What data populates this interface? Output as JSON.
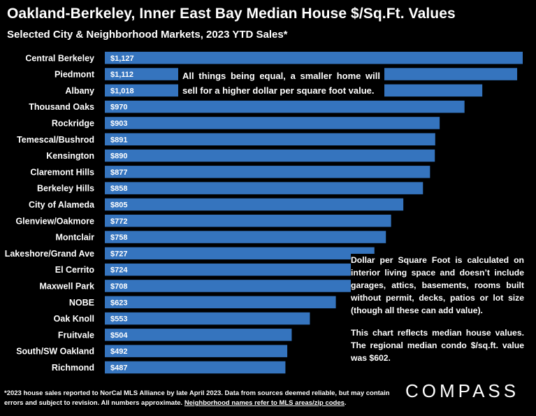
{
  "title": "Oakland-Berkeley, Inner East Bay Median House $/Sq.Ft. Values",
  "subtitle": "Selected City & Neighborhood Markets, 2023 YTD Sales*",
  "callout": "All things being equal, a smaller home will sell for a higher dollar per square foot value.",
  "note_paragraph_1": "Dollar per Square Foot is calculated on interior living space and doesn’t include garages, attics, basements, rooms built without permit, decks, patios or lot size (though all these can add value).",
  "note_paragraph_2": "This chart reflects median house values. The regional median condo $/sq.ft. value was $602.",
  "footer": {
    "text": "*2023 house sales reported to NorCal MLS Alliance by late April 2023. Data from sources deemed reliable, but may contain errors and subject to revision. All numbers approximate.",
    "link": "Neighborhood names refer to MLS areas/zip codes"
  },
  "logo": "COMPASS",
  "colors": {
    "bar": "#3574be",
    "background": "#000000",
    "text": "#ffffff"
  },
  "chart_data": {
    "type": "bar",
    "orientation": "horizontal",
    "categories": [
      "Central Berkeley",
      "Piedmont",
      "Albany",
      "Thousand Oaks",
      "Rockridge",
      "Temescal/Bushrod",
      "Kensington",
      "Claremont Hills",
      "Berkeley Hills",
      "City of Alameda",
      "Glenview/Oakmore",
      "Montclair",
      "Lakeshore/Grand Ave",
      "El Cerrito",
      "Maxwell Park",
      "NOBE",
      "Oak Knoll",
      "Fruitvale",
      "South/SW Oakland",
      "Richmond"
    ],
    "values": [
      1127,
      1112,
      1018,
      970,
      903,
      891,
      890,
      877,
      858,
      805,
      772,
      758,
      727,
      724,
      708,
      623,
      553,
      504,
      492,
      487
    ],
    "value_labels": [
      "$1,127",
      "$1,112",
      "$1,018",
      "$970",
      "$903",
      "$891",
      "$890",
      "$877",
      "$858",
      "$805",
      "$772",
      "$758",
      "$727",
      "$724",
      "$708",
      "$623",
      "$553",
      "$504",
      "$492",
      "$487"
    ],
    "title": "Oakland-Berkeley, Inner East Bay Median House $/Sq.Ft. Values",
    "xlabel": "",
    "ylabel": "",
    "xlim": [
      0,
      1127
    ],
    "grid": false
  }
}
